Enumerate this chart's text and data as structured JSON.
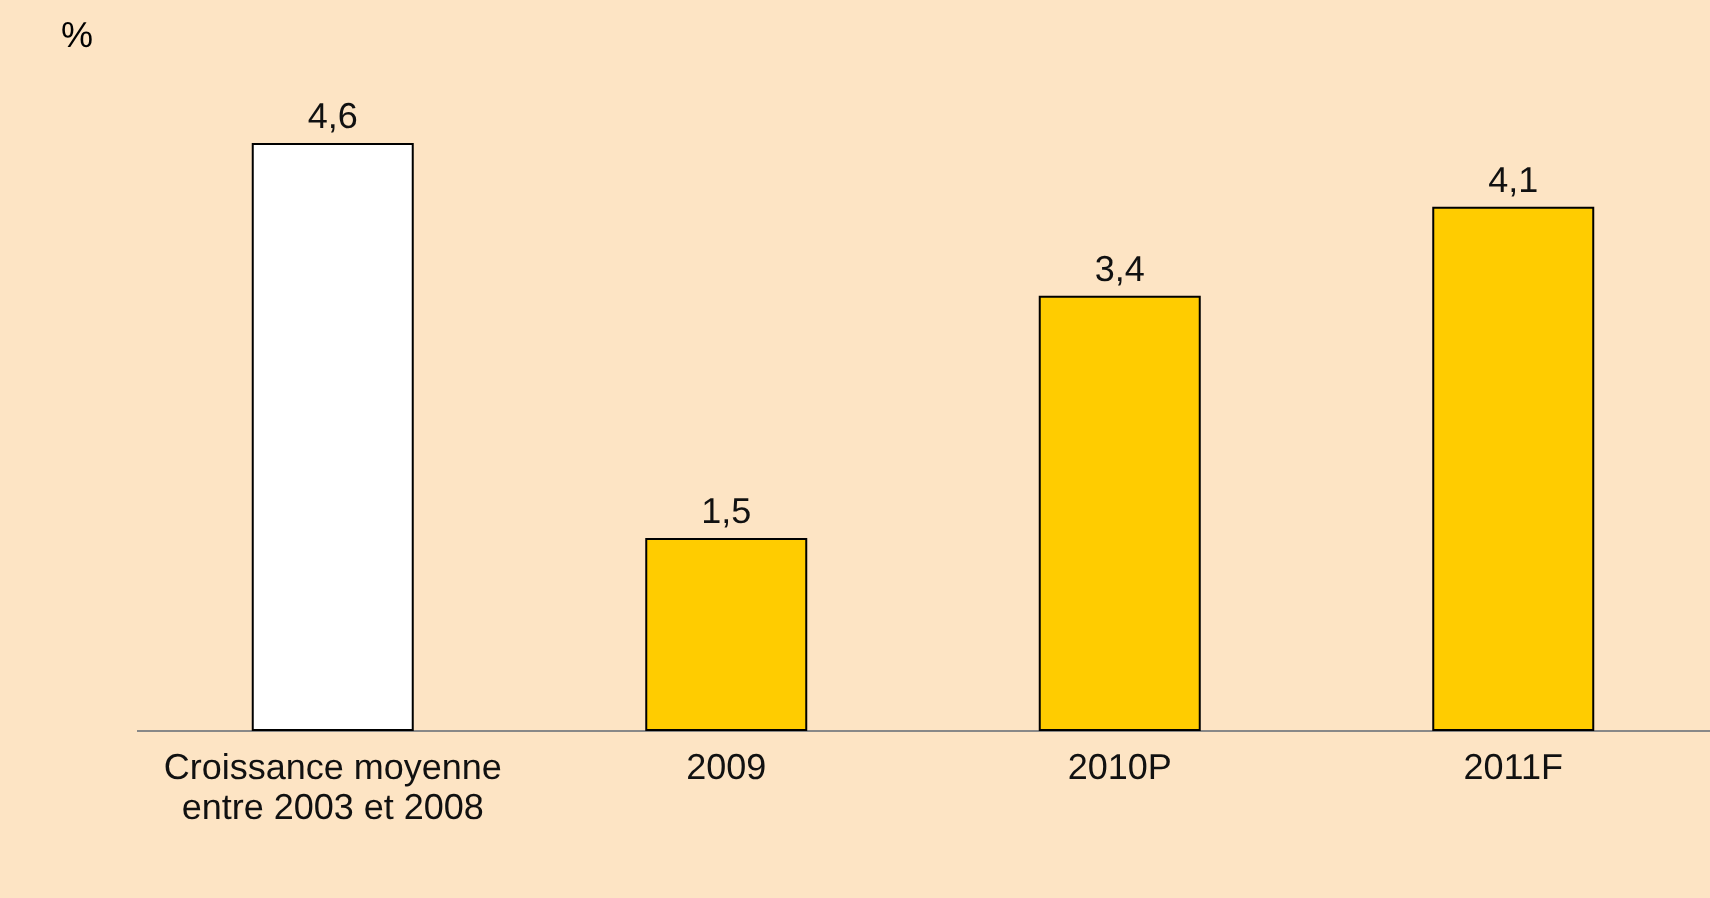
{
  "chart_data": {
    "type": "bar",
    "ylabel": "%",
    "categories": [
      "Croissance moyenne entre 2003 et 2008",
      "2009",
      "2010P",
      "2011F"
    ],
    "values": [
      4.6,
      1.5,
      3.4,
      4.1
    ],
    "colors": [
      "#ffffff",
      "#ffcc00",
      "#ffcc00",
      "#ffcc00"
    ],
    "value_labels": [
      "4,6",
      "1,5",
      "3,4",
      "4,1"
    ],
    "grid": false,
    "legend": false
  }
}
